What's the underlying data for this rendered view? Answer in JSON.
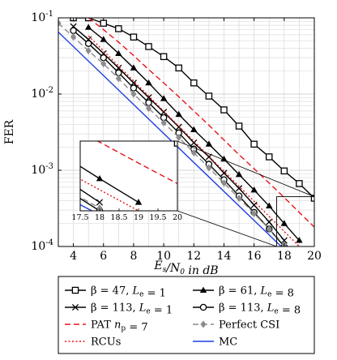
{
  "chart_data": {
    "type": "line",
    "xlabel": "E_s/N_0 in dB",
    "ylabel": "FER",
    "xscale": "linear",
    "yscale": "log",
    "xlim": [
      3,
      20
    ],
    "ylim": [
      0.0001,
      0.1
    ],
    "x_ticks": [
      4,
      6,
      8,
      10,
      12,
      14,
      16,
      18,
      20
    ],
    "x_tick_labels": [
      "4",
      "6",
      "8",
      "10",
      "12",
      "14",
      "16",
      "18",
      "20"
    ],
    "y_ticks": [
      0.0001,
      0.001,
      0.01,
      0.1
    ],
    "y_tick_labels": [
      "10^-4",
      "10^-3",
      "10^-2",
      "10^-1"
    ],
    "grid": true,
    "legend_placement": "below",
    "series": [
      {
        "name": "β = 47, L_e = 1",
        "color": "#000000",
        "dash": "solid",
        "marker": "square",
        "x": [
          4,
          5,
          6,
          7,
          8,
          9,
          10,
          11,
          12,
          13,
          14,
          15,
          16,
          17,
          18,
          19,
          20
        ],
        "y": [
          0.1,
          0.1,
          0.085,
          0.072,
          0.056,
          0.042,
          0.031,
          0.022,
          0.014,
          0.0094,
          0.0062,
          0.0038,
          0.0022,
          0.0015,
          0.00098,
          0.00067,
          0.00043
        ]
      },
      {
        "name": "β = 61, L_e = 8",
        "color": "#000000",
        "dash": "solid",
        "marker": "triangle",
        "x": [
          5,
          6,
          7,
          8,
          9,
          10,
          11,
          12,
          13,
          14,
          15,
          16,
          17,
          18,
          19
        ],
        "y": [
          0.075,
          0.052,
          0.034,
          0.022,
          0.014,
          0.0087,
          0.0054,
          0.0034,
          0.0022,
          0.0014,
          0.00088,
          0.00055,
          0.00034,
          0.0002,
          0.00012
        ]
      },
      {
        "name": "β = 113, L_e = 1",
        "color": "#000000",
        "dash": "solid",
        "marker": "x",
        "x": [
          4,
          5,
          6,
          7,
          8,
          9,
          10,
          11,
          12,
          13,
          14,
          15,
          16,
          17,
          18
        ],
        "y": [
          0.077,
          0.052,
          0.034,
          0.022,
          0.014,
          0.009,
          0.0058,
          0.0037,
          0.0023,
          0.0015,
          0.00092,
          0.00058,
          0.00035,
          0.00021,
          0.00012
        ]
      },
      {
        "name": "β = 113, L_e = 8",
        "color": "#000000",
        "dash": "solid",
        "marker": "circle",
        "x": [
          4,
          5,
          6,
          7,
          8,
          9,
          10,
          11,
          12,
          13,
          14,
          15,
          16,
          17,
          18
        ],
        "y": [
          0.068,
          0.046,
          0.03,
          0.019,
          0.012,
          0.0077,
          0.0049,
          0.0031,
          0.0019,
          0.0012,
          0.00075,
          0.00046,
          0.00028,
          0.00017,
          0.0001
        ]
      },
      {
        "name": "PAT n_p = 7",
        "color": "#e8141b",
        "dash": "dashed",
        "marker": "none",
        "x": [
          5,
          6,
          7,
          8,
          9,
          10,
          11,
          12,
          13,
          14,
          15,
          16,
          17,
          18,
          19,
          20
        ],
        "y": [
          0.1,
          0.07,
          0.048,
          0.032,
          0.021,
          0.014,
          0.0092,
          0.006,
          0.0039,
          0.0025,
          0.0016,
          0.00105,
          0.00068,
          0.00044,
          0.00028,
          0.00018
        ]
      },
      {
        "name": "Perfect CSI",
        "color": "#8c8c8c",
        "dash": "dashed",
        "marker": "diamond",
        "x": [
          3,
          4,
          5,
          6,
          7,
          8,
          9,
          10,
          11,
          12,
          13,
          14,
          15,
          16,
          17,
          18
        ],
        "y": [
          0.085,
          0.056,
          0.037,
          0.025,
          0.016,
          0.01,
          0.0065,
          0.0042,
          0.0027,
          0.0017,
          0.00108,
          0.00068,
          0.00043,
          0.00027,
          0.00017,
          0.000106
        ]
      },
      {
        "name": "RCUs",
        "color": "#e8141b",
        "dash": "dotted",
        "marker": "none",
        "x": [
          5,
          19
        ],
        "y": [
          0.058,
          0.0001
        ]
      },
      {
        "name": "MC",
        "color": "#1f3de0",
        "dash": "solid",
        "marker": "none",
        "x": [
          3,
          17.8
        ],
        "y": [
          0.065,
          0.0001
        ]
      }
    ],
    "inset": {
      "x_ticks": [
        17.5,
        18,
        18.5,
        19,
        19.5,
        20
      ],
      "x_tick_labels": [
        "17.5",
        "18",
        "18.5",
        "19",
        "19.5",
        "20"
      ],
      "xlim": [
        17.5,
        20
      ],
      "ylim": [
        0.0001,
        0.00045
      ]
    }
  },
  "legend": {
    "entries": [
      {
        "label": "β = 47, L_e = 1",
        "series": 0
      },
      {
        "label": "β = 61, L_e = 8",
        "series": 1
      },
      {
        "label": "β = 113, L_e = 1",
        "series": 2
      },
      {
        "label": "β = 113, L_e = 8",
        "series": 3
      },
      {
        "label": "PAT n_p = 7",
        "series": 4
      },
      {
        "label": "Perfect CSI",
        "series": 5
      },
      {
        "label": "RCUs",
        "series": 6
      },
      {
        "label": "MC",
        "series": 7
      }
    ]
  }
}
